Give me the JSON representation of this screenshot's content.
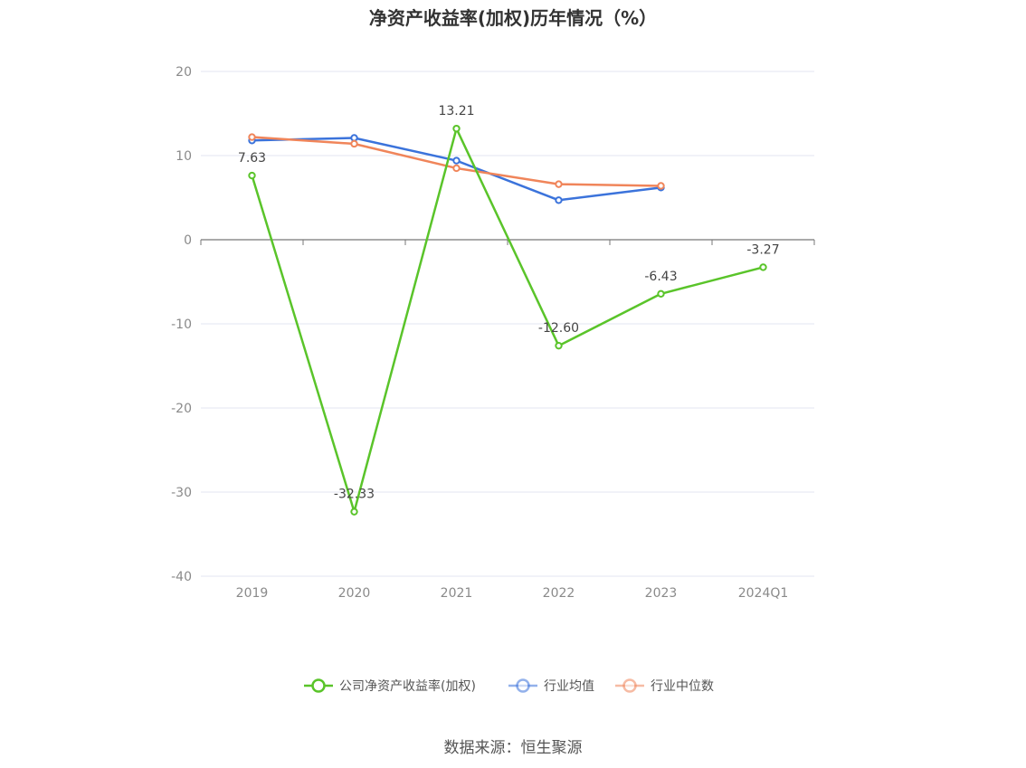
{
  "title": "净资产收益率(加权)历年情况（%）",
  "source": "数据来源：恒生聚源",
  "chart_data": {
    "type": "line",
    "title": "净资产收益率(加权)历年情况（%）",
    "categories": [
      "2019",
      "2020",
      "2021",
      "2022",
      "2023",
      "2024Q1"
    ],
    "ylim": [
      -40,
      20
    ],
    "yticks": [
      20,
      10,
      0,
      -10,
      -20,
      -30,
      -40
    ],
    "grid": true,
    "legend_position": "bottom",
    "series": [
      {
        "name": "公司净资产收益率(加权)",
        "color": "#5ac42a",
        "values": [
          7.63,
          -32.33,
          13.21,
          -12.6,
          -6.43,
          -3.27
        ],
        "labels": [
          "7.63",
          "-32.33",
          "13.21",
          "-12.60",
          "-6.43",
          "-3.27"
        ]
      },
      {
        "name": "行业均值",
        "color": "#3b73db",
        "values": [
          11.8,
          12.1,
          9.4,
          4.7,
          6.2,
          null
        ]
      },
      {
        "name": "行业中位数",
        "color": "#f0855a",
        "values": [
          12.2,
          11.4,
          8.5,
          6.6,
          6.4,
          null
        ]
      }
    ]
  }
}
